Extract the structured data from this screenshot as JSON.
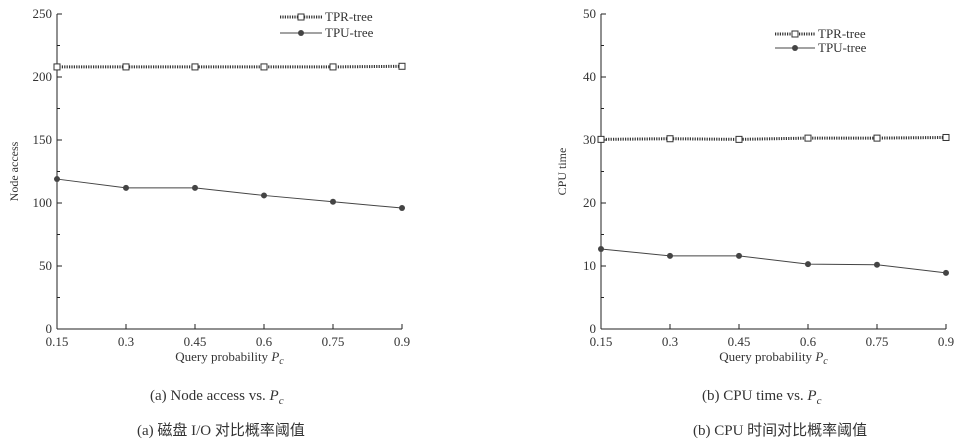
{
  "chart_data": [
    {
      "type": "line",
      "x": [
        0.15,
        0.3,
        0.45,
        0.6,
        0.75,
        0.9
      ],
      "xlabel": "Query probability",
      "xlabel_symbol": "P",
      "xlabel_subscript": "c",
      "ylabel": "Node access",
      "xlim": [
        0.15,
        0.9
      ],
      "ylim": [
        0,
        250
      ],
      "xticks": [
        "0.15",
        "0.3",
        "0.45",
        "0.6",
        "0.75",
        "0.9"
      ],
      "yticks": [
        "0",
        "50",
        "100",
        "150",
        "200",
        "250"
      ],
      "grid": false,
      "legend": "top-right",
      "series": [
        {
          "name": "TPR-tree",
          "marker": "square-open",
          "line": "dotted-thick",
          "values": [
            208,
            208,
            208,
            208,
            208,
            208.5
          ]
        },
        {
          "name": "TPU-tree",
          "marker": "circle-filled",
          "line": "solid",
          "values": [
            119,
            112,
            112,
            106,
            101,
            96
          ]
        }
      ]
    },
    {
      "type": "line",
      "x": [
        0.15,
        0.3,
        0.45,
        0.6,
        0.75,
        0.9
      ],
      "xlabel": "Query probability",
      "xlabel_symbol": "P",
      "xlabel_subscript": "c",
      "ylabel": "CPU time",
      "xlim": [
        0.15,
        0.9
      ],
      "ylim": [
        0,
        50
      ],
      "xticks": [
        "0.15",
        "0.3",
        "0.45",
        "0.6",
        "0.75",
        "0.9"
      ],
      "yticks": [
        "0",
        "10",
        "20",
        "30",
        "40",
        "50"
      ],
      "grid": false,
      "legend": "top-right",
      "series": [
        {
          "name": "TPR-tree",
          "marker": "square-open",
          "line": "dotted-thick",
          "values": [
            30.1,
            30.2,
            30.1,
            30.3,
            30.3,
            30.4
          ]
        },
        {
          "name": "TPU-tree",
          "marker": "circle-filled",
          "line": "solid",
          "values": [
            12.7,
            11.6,
            11.6,
            10.3,
            10.2,
            8.9
          ]
        }
      ]
    }
  ],
  "captions": {
    "a_en_prefix": "(a) Node access vs.",
    "a_zh": "(a)  磁盘 I/O 对比概率阈值",
    "b_en_prefix": "(b) CPU time vs.",
    "b_zh": "(b) CPU 时间对比概率阈值",
    "symbol": "P",
    "subscript": "c"
  },
  "colors": {
    "axis": "#222222",
    "tpr_line": "#333333",
    "tpu_line": "#444444",
    "marker_fill": "#444444",
    "text": "#333333"
  }
}
